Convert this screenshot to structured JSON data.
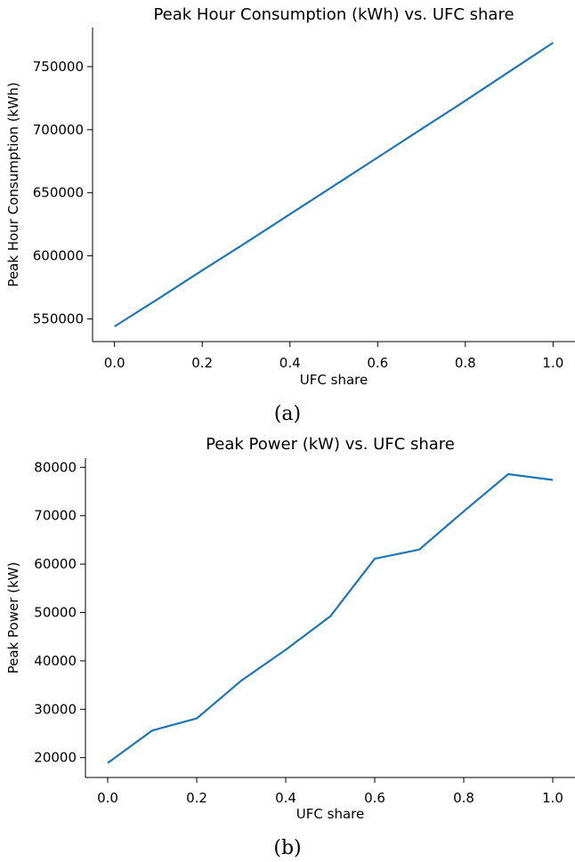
{
  "chart_data": [
    {
      "type": "line",
      "title": "Peak Hour Consumption (kWh) vs. UFC share",
      "xlabel": "UFC share",
      "ylabel": "Peak Hour Consumption (kWh)",
      "caption": "(a)",
      "xlim": [
        -0.05,
        1.05
      ],
      "ylim": [
        532000,
        781000
      ],
      "xticks": [
        0.0,
        0.2,
        0.4,
        0.6,
        0.8,
        1.0
      ],
      "xtick_labels": [
        "0.0",
        "0.2",
        "0.4",
        "0.6",
        "0.8",
        "1.0"
      ],
      "yticks": [
        550000,
        600000,
        650000,
        700000,
        750000
      ],
      "ytick_labels": [
        "550000",
        "600000",
        "650000",
        "700000",
        "750000"
      ],
      "grid": false,
      "color": "#1f77b4",
      "x": [
        0.0,
        0.1,
        0.2,
        0.3,
        0.4,
        0.5,
        0.6,
        0.7,
        0.8,
        0.9,
        1.0
      ],
      "y": [
        544000,
        566000,
        588500,
        610500,
        633000,
        655500,
        678000,
        700500,
        723000,
        746000,
        769000
      ]
    },
    {
      "type": "line",
      "title": "Peak Power (kW) vs. UFC share",
      "xlabel": "UFC share",
      "ylabel": "Peak Power (kW)",
      "caption": "(b)",
      "xlim": [
        -0.05,
        1.05
      ],
      "ylim": [
        15900,
        81900
      ],
      "xticks": [
        0.0,
        0.2,
        0.4,
        0.6,
        0.8,
        1.0
      ],
      "xtick_labels": [
        "0.0",
        "0.2",
        "0.4",
        "0.6",
        "0.8",
        "1.0"
      ],
      "yticks": [
        20000,
        30000,
        40000,
        50000,
        60000,
        70000,
        80000
      ],
      "ytick_labels": [
        "20000",
        "30000",
        "40000",
        "50000",
        "60000",
        "70000",
        "80000"
      ],
      "grid": false,
      "color": "#1f77b4",
      "x": [
        0.0,
        0.1,
        0.2,
        0.3,
        0.4,
        0.5,
        0.6,
        0.7,
        0.8,
        0.9,
        1.0
      ],
      "y": [
        18900,
        25600,
        28100,
        35900,
        42300,
        49200,
        61100,
        63000,
        70900,
        78600,
        77400
      ]
    }
  ]
}
